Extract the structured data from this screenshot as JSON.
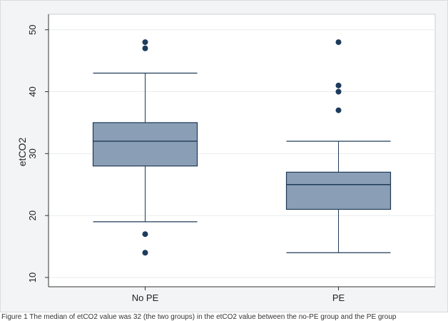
{
  "chart_data": {
    "type": "box",
    "title": "",
    "ylabel": "etCO2",
    "xlabel": "",
    "ylim": [
      8.5,
      52.5
    ],
    "yticks": [
      10,
      20,
      30,
      40,
      50
    ],
    "grid": true,
    "categories": [
      "No PE",
      "PE"
    ],
    "boxes": [
      {
        "category": "No PE",
        "whisker_low": 19,
        "q1": 28,
        "median": 32,
        "q3": 35,
        "whisker_high": 43,
        "outliers": [
          14,
          17,
          47,
          48
        ]
      },
      {
        "category": "PE",
        "whisker_low": 14,
        "q1": 21,
        "median": 25,
        "q3": 27,
        "whisker_high": 32,
        "outliers": [
          37,
          40,
          41,
          48
        ]
      }
    ],
    "colors": {
      "box_fill": "#8a9fb6",
      "box_stroke": "#1f3a57",
      "outlier": "#1d3b5c",
      "grid": "#e8ecef",
      "plot_border": "#c9d2d8"
    }
  },
  "caption": "Figure 1  The median of etCO2 value was 32 (the two groups) in the etCO2 value between the no-PE group and the PE group"
}
